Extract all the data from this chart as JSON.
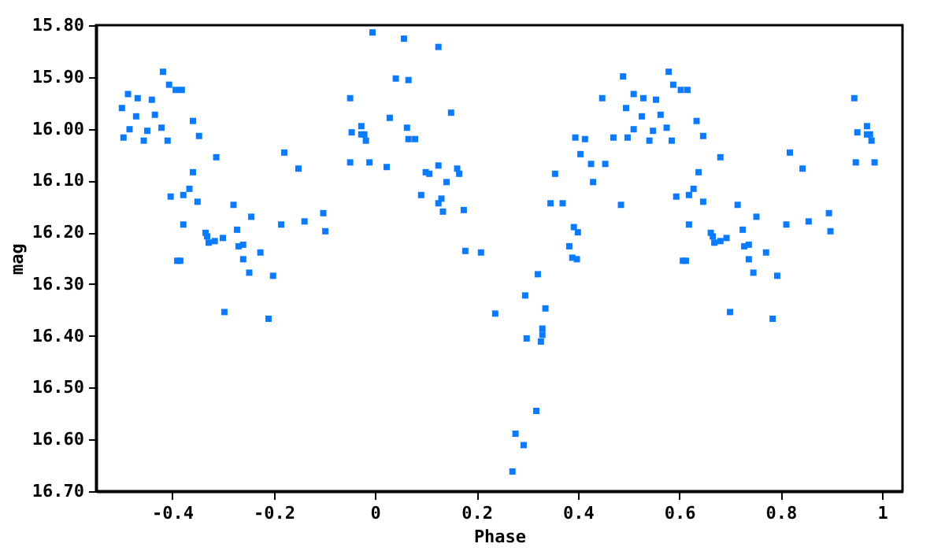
{
  "chart_data": {
    "type": "scatter",
    "xlabel": "Phase",
    "ylabel": "mag",
    "marker": "square",
    "grid": false,
    "xlim": [
      -0.55,
      1.04
    ],
    "xticks": [
      {
        "value": -0.4,
        "label": "-0.4"
      },
      {
        "value": -0.2,
        "label": "-0.2"
      },
      0,
      {
        "value": 0.2,
        "label": "0.2"
      },
      {
        "value": 0.4,
        "label": "0.4"
      },
      {
        "value": 0.6,
        "label": "0.6"
      },
      {
        "value": 0.8,
        "label": "0.8"
      },
      1
    ],
    "ylim": [
      16.7,
      15.8
    ],
    "yticks": [
      {
        "value": 15.8,
        "label": "15.80"
      },
      {
        "value": 15.9,
        "label": "15.90"
      },
      {
        "value": 16.0,
        "label": "16.00"
      },
      {
        "value": 16.1,
        "label": "16.10"
      },
      {
        "value": 16.2,
        "label": "16.20"
      },
      {
        "value": 16.3,
        "label": "16.30"
      },
      {
        "value": 16.4,
        "label": "16.40"
      },
      {
        "value": 16.5,
        "label": "16.50"
      },
      {
        "value": 16.6,
        "label": "16.60"
      },
      {
        "value": 16.7,
        "label": "16.70"
      }
    ],
    "series": [
      {
        "color": "#0a7bff",
        "x": [
          -0.499,
          -0.487,
          -0.496,
          -0.484,
          -0.468,
          -0.471,
          -0.456,
          -0.449,
          -0.44,
          -0.434,
          -0.418,
          -0.421,
          -0.409,
          -0.406,
          -0.393,
          -0.381,
          -0.403,
          -0.39,
          -0.384,
          -0.378,
          -0.378,
          -0.366,
          -0.359,
          -0.359,
          -0.35,
          -0.347,
          -0.334,
          -0.331,
          -0.328,
          -0.316,
          -0.313,
          -0.3,
          -0.297,
          -0.279,
          -0.272,
          -0.269,
          -0.26,
          -0.26,
          -0.248,
          -0.244,
          -0.226,
          -0.21,
          -0.201,
          -0.185,
          -0.179,
          -0.151,
          -0.139,
          -0.102,
          -0.098,
          -0.049,
          -0.046,
          -0.027,
          -0.027,
          -0.021,
          -0.018,
          -0.049,
          -0.011,
          -0.005,
          0.057,
          0.125,
          0.041,
          0.066,
          0.15,
          0.029,
          0.063,
          0.066,
          0.079,
          0.023,
          0.1,
          0.107,
          0.125,
          0.162,
          0.166,
          0.141,
          0.091,
          0.131,
          0.125,
          0.134,
          0.175,
          0.178,
          0.209,
          0.237,
          0.296,
          0.321,
          0.336,
          0.299,
          0.33,
          0.33,
          0.327,
          0.318,
          0.277,
          0.293,
          0.271,
          0.355,
          0.346,
          0.37,
          0.392,
          0.4,
          0.383,
          0.389,
          0.398,
          0.395,
          0.414,
          0.405,
          0.426,
          0.454,
          0.43,
          0.448,
          0.47,
          0.485,
          0.489,
          0.495,
          0.498,
          0.51,
          0.51,
          0.526,
          0.529,
          0.541,
          0.548,
          0.554,
          0.579,
          0.563,
          0.575,
          0.585,
          0.588,
          0.603,
          0.616,
          0.634,
          0.647,
          0.594,
          0.607,
          0.613,
          0.619,
          0.619,
          0.628,
          0.638,
          0.647,
          0.681,
          0.662,
          0.666,
          0.669,
          0.681,
          0.693,
          0.7,
          0.715,
          0.725,
          0.728,
          0.737,
          0.737,
          0.746,
          0.752,
          0.771,
          0.784,
          0.793,
          0.811,
          0.818,
          0.843,
          0.855,
          0.895,
          0.898,
          0.945,
          0.951,
          0.97,
          0.97,
          0.976,
          0.979,
          0.948,
          0.985
        ],
        "values": [
          15.96,
          15.933,
          16.017,
          16.001,
          15.941,
          15.976,
          16.023,
          16.004,
          15.944,
          15.973,
          15.89,
          15.998,
          16.023,
          15.915,
          15.925,
          15.925,
          16.131,
          16.255,
          16.255,
          16.128,
          16.185,
          16.116,
          15.985,
          16.084,
          16.141,
          16.014,
          16.201,
          16.208,
          16.22,
          16.217,
          16.055,
          16.211,
          16.354,
          16.147,
          16.195,
          16.227,
          16.224,
          16.252,
          16.278,
          16.17,
          16.239,
          16.367,
          16.284,
          16.185,
          16.046,
          16.077,
          16.179,
          16.163,
          16.198,
          15.941,
          16.007,
          15.995,
          16.011,
          16.011,
          16.023,
          16.065,
          16.065,
          15.814,
          15.826,
          15.842,
          15.903,
          15.906,
          15.969,
          15.979,
          15.998,
          16.02,
          16.02,
          16.074,
          16.084,
          16.087,
          16.071,
          16.077,
          16.087,
          16.103,
          16.128,
          16.135,
          16.144,
          16.16,
          16.157,
          16.236,
          16.239,
          16.357,
          16.322,
          16.281,
          16.347,
          16.405,
          16.386,
          16.398,
          16.411,
          16.545,
          16.589,
          16.611,
          16.662,
          16.087,
          16.144,
          16.144,
          16.19,
          16.2,
          16.227,
          16.249,
          16.252,
          16.017,
          16.02,
          16.049,
          16.068,
          16.068,
          16.103,
          15.941,
          16.017,
          16.147,
          15.899,
          15.96,
          16.017,
          15.933,
          16.001,
          15.976,
          15.941,
          16.023,
          16.004,
          15.944,
          15.89,
          15.973,
          15.998,
          16.023,
          15.915,
          15.925,
          15.925,
          15.985,
          16.014,
          16.131,
          16.255,
          16.255,
          16.128,
          16.185,
          16.116,
          16.084,
          16.141,
          16.055,
          16.201,
          16.208,
          16.22,
          16.217,
          16.211,
          16.354,
          16.147,
          16.195,
          16.227,
          16.224,
          16.252,
          16.278,
          16.17,
          16.239,
          16.367,
          16.284,
          16.185,
          16.046,
          16.077,
          16.179,
          16.163,
          16.198,
          15.941,
          16.007,
          15.995,
          16.011,
          16.011,
          16.023,
          16.065,
          16.065
        ]
      }
    ]
  }
}
